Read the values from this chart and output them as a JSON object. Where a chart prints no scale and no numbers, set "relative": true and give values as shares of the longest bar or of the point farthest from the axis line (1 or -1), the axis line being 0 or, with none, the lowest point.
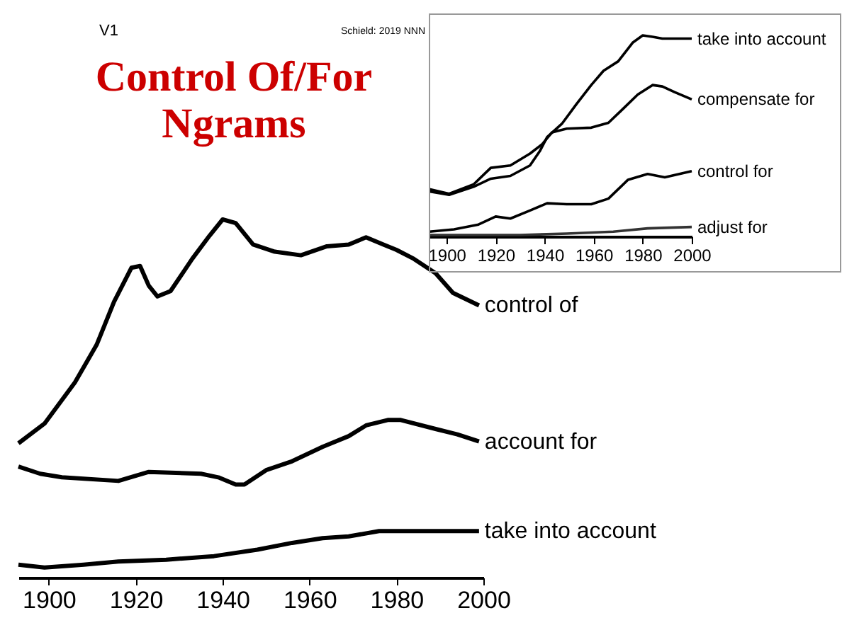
{
  "chart_data": [
    {
      "type": "line",
      "title": "Control Of/For Ngrams",
      "annotations": [
        "V1",
        "Schield: 2019 NNN"
      ],
      "relative": true,
      "xlim": [
        1893,
        2000
      ],
      "xticks": [
        1900,
        1920,
        1940,
        1960,
        1980,
        2000
      ],
      "grid": false,
      "series": [
        {
          "name": "control of",
          "color": "#000000",
          "x": [
            1893,
            1899,
            1906,
            1911,
            1915,
            1919,
            1921,
            1923,
            1925,
            1928,
            1933,
            1937,
            1940,
            1943,
            1947,
            1952,
            1958,
            1964,
            1969,
            1973,
            1977,
            1980,
            1984,
            1989,
            1993,
            1999
          ],
          "values": [
            0.375,
            0.43,
            0.545,
            0.65,
            0.77,
            0.865,
            0.87,
            0.815,
            0.785,
            0.8,
            0.89,
            0.955,
            1.0,
            0.99,
            0.93,
            0.91,
            0.9,
            0.925,
            0.93,
            0.95,
            0.93,
            0.915,
            0.89,
            0.85,
            0.795,
            0.76
          ]
        },
        {
          "name": "account for",
          "color": "#000000",
          "x": [
            1893,
            1898,
            1903,
            1916,
            1923,
            1935,
            1939,
            1943,
            1945,
            1950,
            1956,
            1963,
            1969,
            1973,
            1978,
            1981,
            1989,
            1994,
            1999
          ],
          "values": [
            0.31,
            0.29,
            0.28,
            0.27,
            0.295,
            0.29,
            0.28,
            0.26,
            0.26,
            0.3,
            0.325,
            0.365,
            0.395,
            0.425,
            0.44,
            0.44,
            0.415,
            0.4,
            0.38
          ]
        },
        {
          "name": "take into account",
          "color": "#000000",
          "x": [
            1893,
            1899,
            1908,
            1916,
            1927,
            1938,
            1948,
            1956,
            1963,
            1969,
            1976,
            1980,
            1999
          ],
          "values": [
            0.036,
            0.028,
            0.036,
            0.045,
            0.05,
            0.06,
            0.078,
            0.097,
            0.11,
            0.115,
            0.13,
            0.13,
            0.13
          ]
        }
      ]
    },
    {
      "type": "line",
      "relative": true,
      "xlim": [
        1893,
        2000
      ],
      "xticks": [
        1900,
        1920,
        1940,
        1960,
        1980,
        2000
      ],
      "grid": false,
      "series": [
        {
          "name": "take into account",
          "color": "#000000",
          "x": [
            1893,
            1901,
            1911,
            1918,
            1926,
            1934,
            1938,
            1941,
            1947,
            1953,
            1959,
            1964,
            1970,
            1976,
            1980,
            1984,
            1988,
            2000
          ],
          "values": [
            0.224,
            0.207,
            0.247,
            0.287,
            0.301,
            0.353,
            0.424,
            0.494,
            0.56,
            0.659,
            0.753,
            0.824,
            0.871,
            0.965,
            1.0,
            0.993,
            0.984,
            0.984
          ]
        },
        {
          "name": "compensate for",
          "color": "#000000",
          "x": [
            1893,
            1901,
            1911,
            1918,
            1926,
            1934,
            1939,
            1943,
            1949,
            1959,
            1966,
            1972,
            1978,
            1984,
            1988,
            1993,
            2000
          ],
          "values": [
            0.235,
            0.212,
            0.259,
            0.341,
            0.353,
            0.412,
            0.459,
            0.518,
            0.536,
            0.541,
            0.565,
            0.635,
            0.706,
            0.753,
            0.746,
            0.718,
            0.682
          ]
        },
        {
          "name": "control for",
          "color": "#000000",
          "x": [
            1893,
            1903,
            1913,
            1920,
            1926,
            1934,
            1941,
            1949,
            1959,
            1966,
            1974,
            1982,
            1989,
            2000
          ],
          "values": [
            0.024,
            0.035,
            0.059,
            0.099,
            0.089,
            0.129,
            0.165,
            0.16,
            0.16,
            0.188,
            0.282,
            0.311,
            0.294,
            0.325
          ]
        },
        {
          "name": "adjust for",
          "color": "#333333",
          "x": [
            1893,
            1930,
            1949,
            1968,
            1982,
            2000
          ],
          "values": [
            0.007,
            0.007,
            0.014,
            0.024,
            0.04,
            0.047
          ]
        }
      ]
    }
  ]
}
